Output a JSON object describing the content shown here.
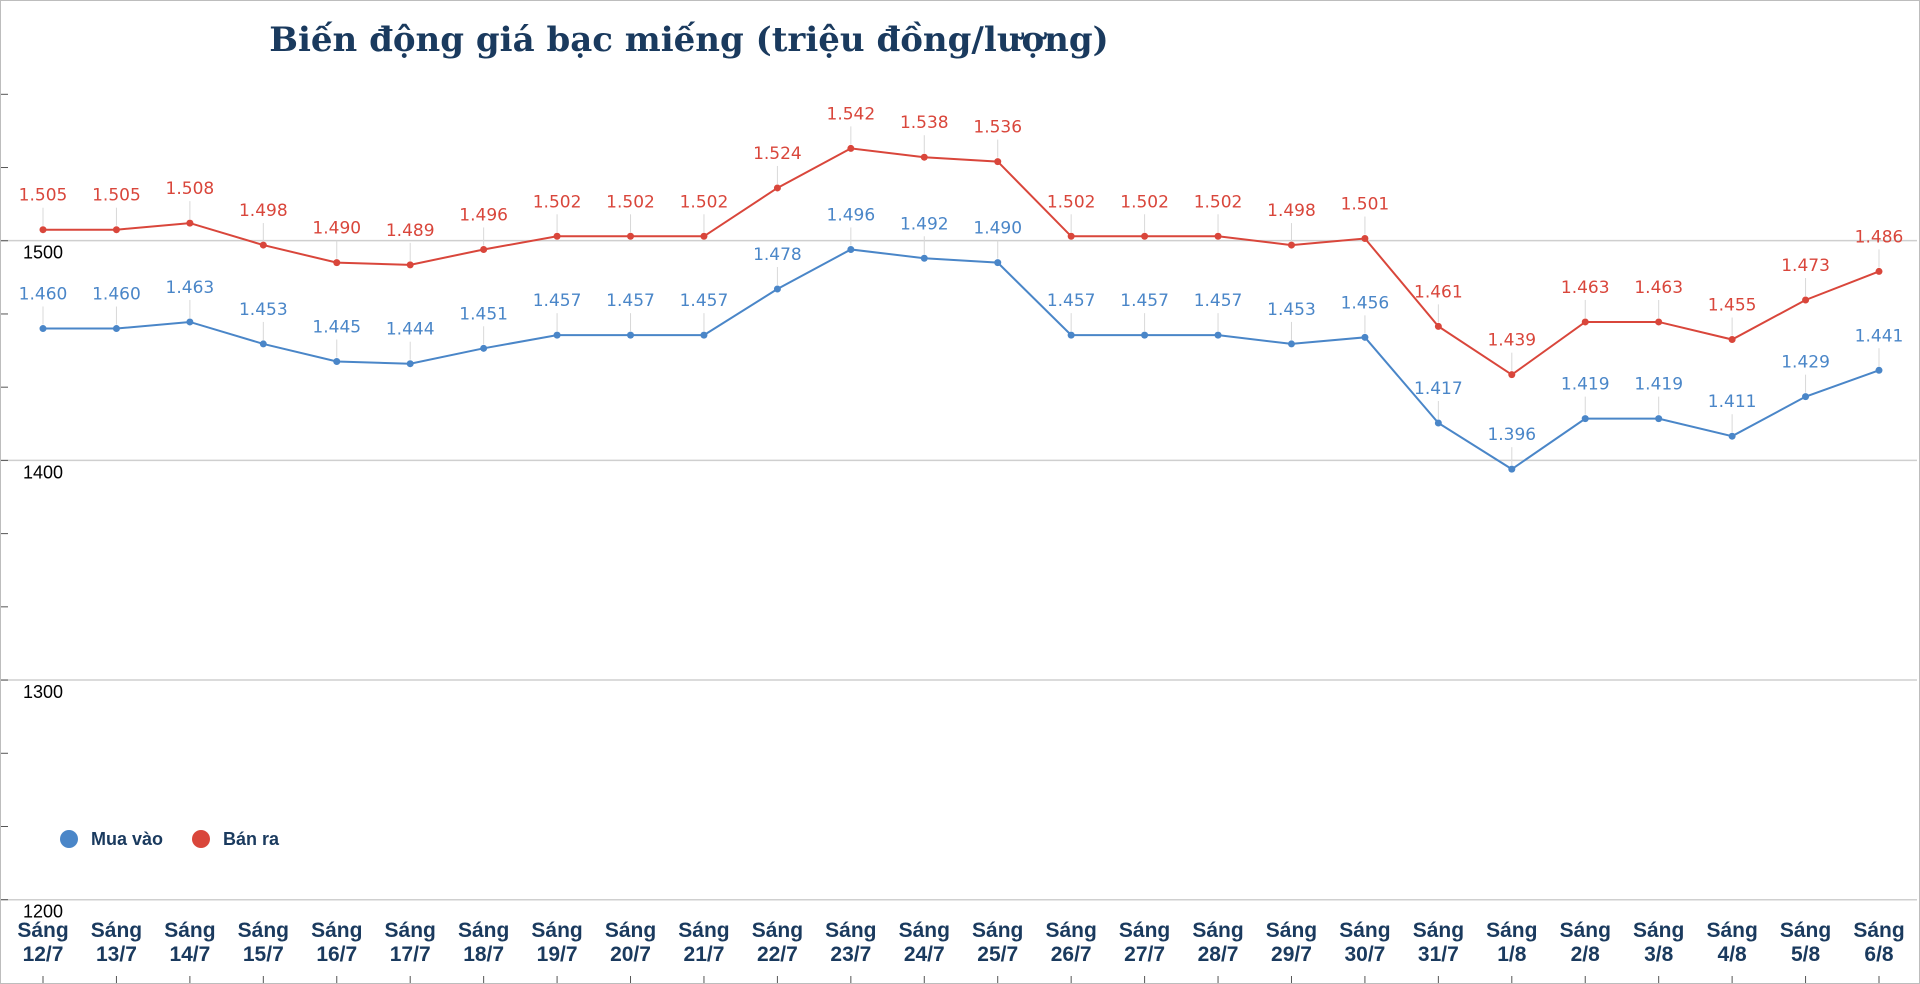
{
  "chart_data": {
    "type": "line",
    "title": "Biến động giá bạc miếng (triệu đồng/lượng)",
    "xlabel": "",
    "ylabel": "",
    "ylim": [
      1165,
      1600
    ],
    "yticks": [
      1200,
      1300,
      1400,
      1500
    ],
    "grid": true,
    "legend_position": "bottom-left",
    "categories": [
      [
        "Sáng",
        "12/7"
      ],
      [
        "Sáng",
        "13/7"
      ],
      [
        "Sáng",
        "14/7"
      ],
      [
        "Sáng",
        "15/7"
      ],
      [
        "Sáng",
        "16/7"
      ],
      [
        "Sáng",
        "17/7"
      ],
      [
        "Sáng",
        "18/7"
      ],
      [
        "Sáng",
        "19/7"
      ],
      [
        "Sáng",
        "20/7"
      ],
      [
        "Sáng",
        "21/7"
      ],
      [
        "Sáng",
        "22/7"
      ],
      [
        "Sáng",
        "23/7"
      ],
      [
        "Sáng",
        "24/7"
      ],
      [
        "Sáng",
        "25/7"
      ],
      [
        "Sáng",
        "26/7"
      ],
      [
        "Sáng",
        "27/7"
      ],
      [
        "Sáng",
        "28/7"
      ],
      [
        "Sáng",
        "29/7"
      ],
      [
        "Sáng",
        "30/7"
      ],
      [
        "Sáng",
        "31/7"
      ],
      [
        "Sáng",
        "1/8"
      ],
      [
        "Sáng",
        "2/8"
      ],
      [
        "Sáng",
        "3/8"
      ],
      [
        "Sáng",
        "4/8"
      ],
      [
        "Sáng",
        "5/8"
      ],
      [
        "Sáng",
        "6/8"
      ]
    ],
    "series": [
      {
        "name": "Mua vào",
        "color": "#4a86c8",
        "values": [
          1460,
          1460,
          1463,
          1453,
          1445,
          1444,
          1451,
          1457,
          1457,
          1457,
          1478,
          1496,
          1492,
          1490,
          1457,
          1457,
          1457,
          1453,
          1456,
          1417,
          1396,
          1419,
          1419,
          1411,
          1429,
          1441
        ],
        "labels": [
          "1.460",
          "1.460",
          "1.463",
          "1.453",
          "1.445",
          "1.444",
          "1.451",
          "1.457",
          "1.457",
          "1.457",
          "1.478",
          "1.496",
          "1.492",
          "1.490",
          "1.457",
          "1.457",
          "1.457",
          "1.453",
          "1.456",
          "1.417",
          "1.396",
          "1.419",
          "1.419",
          "1.411",
          "1.429",
          "1.441"
        ]
      },
      {
        "name": "Bán ra",
        "color": "#d9463b",
        "values": [
          1505,
          1505,
          1508,
          1498,
          1490,
          1489,
          1496,
          1502,
          1502,
          1502,
          1524,
          1542,
          1538,
          1536,
          1502,
          1502,
          1502,
          1498,
          1501,
          1461,
          1439,
          1463,
          1463,
          1455,
          1473,
          1486
        ],
        "labels": [
          "1.505",
          "1.505",
          "1.508",
          "1.498",
          "1.490",
          "1.489",
          "1.496",
          "1.502",
          "1.502",
          "1.502",
          "1.524",
          "1.542",
          "1.538",
          "1.536",
          "1.502",
          "1.502",
          "1.502",
          "1.498",
          "1.501",
          "1.461",
          "1.439",
          "1.463",
          "1.463",
          "1.455",
          "1.473",
          "1.486"
        ]
      }
    ]
  }
}
